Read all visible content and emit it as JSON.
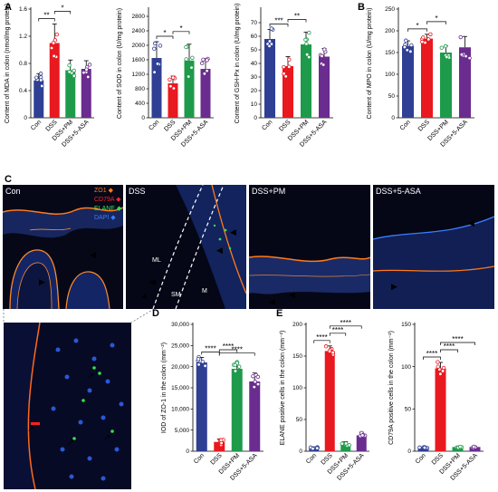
{
  "panels": {
    "A": "A",
    "B": "B",
    "C": "C",
    "D": "D",
    "E": "E"
  },
  "colors": {
    "Con": "#2e3f94",
    "DSS": "#e8191f",
    "DSS+PM": "#1e9a4b",
    "DSS+5-ASA": "#6a2c8e"
  },
  "groups": [
    "Con",
    "DSS",
    "DSS+PM",
    "DSS+5-ASA"
  ],
  "chart_data": [
    {
      "id": "mda",
      "type": "bar",
      "categories": [
        "Con",
        "DSS",
        "DSS+PM",
        "DSS+5-ASA"
      ],
      "values": [
        0.55,
        1.1,
        0.7,
        0.72
      ],
      "errors": [
        0.1,
        0.28,
        0.15,
        0.12
      ],
      "ylabel": "Content of MDA in colon (nmol/mg protein)",
      "ylim": [
        0,
        1.6
      ],
      "yticks": [
        0,
        0.4,
        0.8,
        1.2,
        1.6
      ],
      "ytick_labels": [
        "0",
        "0.4",
        "0.8",
        "1.2",
        "1.6"
      ],
      "sig": [
        {
          "a": 0,
          "b": 1,
          "label": "**"
        },
        {
          "a": 1,
          "b": 2,
          "label": "*"
        }
      ]
    },
    {
      "id": "sod",
      "type": "bar",
      "categories": [
        "Con",
        "DSS",
        "DSS+PM",
        "DSS+5-ASA"
      ],
      "values": [
        1650,
        950,
        1580,
        1350
      ],
      "errors": [
        450,
        200,
        450,
        280
      ],
      "ylabel": "Content of SOD in colon (U/mg protein)",
      "ylim": [
        0,
        3000
      ],
      "yticks": [
        0,
        400,
        800,
        1200,
        1600,
        2000,
        2400,
        2800
      ],
      "ytick_labels": [
        "0",
        "400",
        "800",
        "1200",
        "1600",
        "2000",
        "2400",
        "2800"
      ],
      "sig": [
        {
          "a": 0,
          "b": 1,
          "label": "*"
        },
        {
          "a": 1,
          "b": 2,
          "label": "*"
        }
      ]
    },
    {
      "id": "gsh",
      "type": "bar",
      "categories": [
        "Con",
        "DSS",
        "DSS+PM",
        "DSS+5-ASA"
      ],
      "values": [
        58,
        38,
        54,
        45
      ],
      "errors": [
        7,
        7,
        9,
        6
      ],
      "ylabel": "Content of GSH-Px in colon (U/mg protein)",
      "ylim": [
        0,
        80
      ],
      "yticks": [
        0,
        10,
        20,
        30,
        40,
        50,
        60,
        70
      ],
      "ytick_labels": [
        "0",
        "10",
        "20",
        "30",
        "40",
        "50",
        "60",
        "70"
      ],
      "sig": [
        {
          "a": 0,
          "b": 1,
          "label": "***"
        },
        {
          "a": 1,
          "b": 2,
          "label": "**"
        }
      ]
    },
    {
      "id": "mpo",
      "type": "bar",
      "categories": [
        "Con",
        "DSS",
        "DSS+PM",
        "DSS+5-ASA"
      ],
      "values": [
        165,
        182,
        150,
        162
      ],
      "errors": [
        12,
        10,
        15,
        25
      ],
      "ylabel": "Content of MPO in colon (U/mg protein)",
      "ylim": [
        0,
        250
      ],
      "yticks": [
        0,
        50,
        100,
        150,
        200,
        250
      ],
      "ytick_labels": [
        "0",
        "50",
        "100",
        "150",
        "200",
        "250"
      ],
      "sig": [
        {
          "a": 0,
          "b": 1,
          "label": "*"
        },
        {
          "a": 1,
          "b": 2,
          "label": "*"
        }
      ]
    },
    {
      "id": "zo1",
      "type": "bar",
      "categories": [
        "Con",
        "DSS",
        "DSS+PM",
        "DSS+5-ASA"
      ],
      "values": [
        21000,
        2200,
        19500,
        16500
      ],
      "errors": [
        1200,
        700,
        1500,
        2000
      ],
      "ylabel": "IOD of ZO-1 in the colon (mm⁻²)",
      "ylim": [
        0,
        30000
      ],
      "yticks": [
        0,
        5000,
        10000,
        15000,
        20000,
        25000,
        30000
      ],
      "ytick_labels": [
        "0",
        "5,000",
        "10,000",
        "15,000",
        "20,000",
        "25,000",
        "30,000"
      ],
      "sig": [
        {
          "a": 0,
          "b": 1,
          "label": "****"
        },
        {
          "a": 1,
          "b": 2,
          "label": "****"
        },
        {
          "a": 1,
          "b": 3,
          "label": "****"
        }
      ]
    },
    {
      "id": "elane",
      "type": "bar",
      "categories": [
        "Con",
        "DSS",
        "DSS+PM",
        "DSS+5-ASA"
      ],
      "values": [
        5,
        158,
        12,
        25
      ],
      "errors": [
        2,
        8,
        3,
        5
      ],
      "ylabel": "ELANE positive cells in the colon (mm⁻²)",
      "ylim": [
        0,
        200
      ],
      "yticks": [
        0,
        50,
        100,
        150,
        200
      ],
      "ytick_labels": [
        "0",
        "50",
        "100",
        "150",
        "200"
      ],
      "sig": [
        {
          "a": 0,
          "b": 1,
          "label": "****"
        },
        {
          "a": 1,
          "b": 2,
          "label": "****"
        },
        {
          "a": 1,
          "b": 3,
          "label": "****"
        }
      ]
    },
    {
      "id": "cd79a",
      "type": "bar",
      "categories": [
        "Con",
        "DSS",
        "DSS+PM",
        "DSS+5-ASA"
      ],
      "values": [
        4,
        98,
        5,
        5
      ],
      "errors": [
        1,
        7,
        1,
        1
      ],
      "ylabel": "CD79A positive cells in the colon (mm⁻²)",
      "ylim": [
        0,
        150
      ],
      "yticks": [
        0,
        50,
        100,
        150
      ],
      "ytick_labels": [
        "0",
        "50",
        "100",
        "150"
      ],
      "sig": [
        {
          "a": 0,
          "b": 1,
          "label": "****"
        },
        {
          "a": 1,
          "b": 2,
          "label": "****"
        },
        {
          "a": 1,
          "b": 3,
          "label": "****"
        }
      ]
    }
  ],
  "micro": {
    "titles": [
      "Con",
      "DSS",
      "DSS+PM",
      "DSS+5-ASA"
    ],
    "legend": [
      {
        "label": "ZO1",
        "color": "#ff7a1a"
      },
      {
        "label": "CD79A",
        "color": "#ff2020"
      },
      {
        "label": "ELANE",
        "color": "#33e04a"
      },
      {
        "label": "DAPI",
        "color": "#3a7dff"
      }
    ],
    "region_labels": {
      "ml": "ML",
      "sm": "SM",
      "m": "M"
    }
  }
}
